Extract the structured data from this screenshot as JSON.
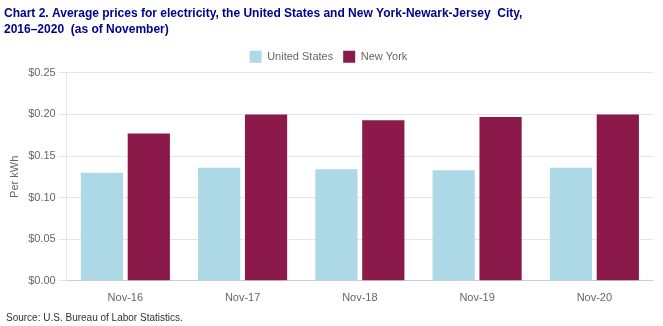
{
  "chart_data": {
    "type": "bar",
    "title": "Chart 2. Average prices for electricity, the United States and New York-Newark-Jersey  City,",
    "subtitle": "2016–2020  (as of November)",
    "ylabel": "Per kWh",
    "source": "Source: U.S. Bureau of Labor Statistics.",
    "categories": [
      "Nov-16",
      "Nov-17",
      "Nov-18",
      "Nov-19",
      "Nov-20"
    ],
    "series": [
      {
        "name": "United States",
        "color": "#ADD8E6",
        "values": [
          0.13,
          0.136,
          0.134,
          0.133,
          0.136
        ]
      },
      {
        "name": "New York",
        "color": "#8B1A4A",
        "values": [
          0.177,
          0.2,
          0.193,
          0.197,
          0.2
        ]
      }
    ],
    "ylim": [
      0,
      0.25
    ],
    "yticks": [
      {
        "value": 0.0,
        "label": "$0.00"
      },
      {
        "value": 0.05,
        "label": "$0.05"
      },
      {
        "value": 0.1,
        "label": "$0.10"
      },
      {
        "value": 0.15,
        "label": "$0.15"
      },
      {
        "value": 0.2,
        "label": "$0.20"
      },
      {
        "value": 0.25,
        "label": "$0.25"
      }
    ],
    "grid": true,
    "legend": "top"
  }
}
